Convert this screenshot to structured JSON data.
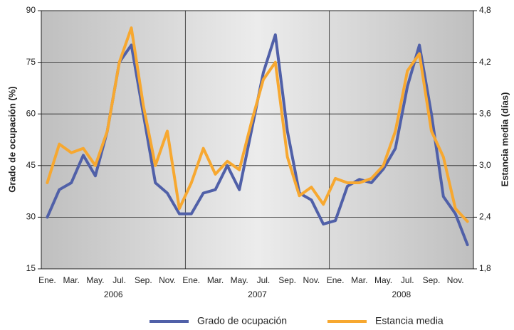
{
  "chart_data": {
    "type": "line",
    "categories": [
      "Ene.",
      null,
      "Mar.",
      null,
      "May.",
      null,
      "Jul.",
      null,
      "Sep.",
      null,
      "Nov.",
      null,
      "Ene.",
      null,
      "Mar.",
      null,
      "May.",
      null,
      "Jul.",
      null,
      "Sep.",
      null,
      "Nov.",
      null,
      "Ene.",
      null,
      "Mar.",
      null,
      "May.",
      null,
      "Jul.",
      null,
      "Sep.",
      null,
      "Nov.",
      null
    ],
    "x_groups": [
      "2006",
      "2007",
      "2008"
    ],
    "y_label": "Grado de ocupación (%)",
    "y2_label": "Estancia media (días)",
    "ylim": [
      15,
      90
    ],
    "yticks": [
      15,
      30,
      45,
      60,
      75,
      90
    ],
    "y2lim": [
      1.8,
      4.8
    ],
    "y2ticks": [
      {
        "value": 1.8,
        "label": "1,8"
      },
      {
        "value": 2.4,
        "label": "2,4"
      },
      {
        "value": 3.0,
        "label": "3,0"
      },
      {
        "value": 3.6,
        "label": "3,6"
      },
      {
        "value": 4.2,
        "label": "4,2"
      },
      {
        "value": 4.8,
        "label": "4,8"
      }
    ],
    "grid": true,
    "legend": "bottom",
    "series": [
      {
        "name": "Grado de ocupación",
        "color": "#5060a8",
        "values": [
          30,
          38,
          40,
          48,
          42,
          55,
          75,
          80,
          60,
          40,
          37,
          31,
          31,
          37,
          38,
          45,
          38,
          55,
          72,
          83,
          55,
          37,
          35,
          28,
          29,
          39,
          41,
          40,
          44,
          50,
          68,
          80,
          60,
          36,
          31,
          22
        ]
      },
      {
        "name": "Estancia media",
        "color": "#f7a830",
        "axis": "y2",
        "values": [
          2.8,
          3.25,
          3.15,
          3.2,
          3.0,
          3.4,
          4.2,
          4.6,
          3.7,
          3.0,
          3.4,
          2.5,
          2.8,
          3.2,
          2.9,
          3.05,
          2.95,
          3.5,
          4.0,
          4.2,
          3.1,
          2.65,
          2.75,
          2.55,
          2.85,
          2.8,
          2.8,
          2.85,
          3.0,
          3.4,
          4.1,
          4.3,
          3.4,
          3.1,
          2.5,
          2.35
        ]
      }
    ]
  }
}
